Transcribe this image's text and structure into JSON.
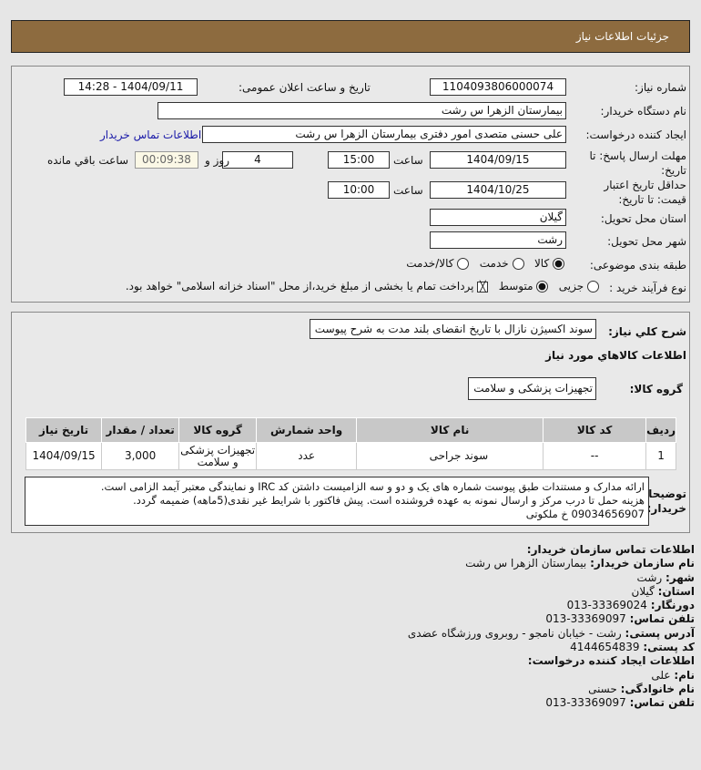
{
  "header": {
    "title": "جزئیات اطلاعات نیاز"
  },
  "form": {
    "need_number_label": "شماره نیاز:",
    "need_number": "1104093806000074",
    "announce_label": "تاریخ و ساعت اعلان عمومی:",
    "announce_value": "1404/09/11 - 14:28",
    "buyer_org_label": "نام دستگاه خریدار:",
    "buyer_org": "بیمارستان الزهرا  س  رشت",
    "creator_label": "ایجاد کننده درخواست:",
    "creator": "علی حسنی متصدی امور دفتری بیمارستان الزهرا  س  رشت",
    "contact_link": "اطلاعات تماس خریدار",
    "deadline_label": "مهلت ارسال پاسخ: تا تاریخ:",
    "deadline_date": "1404/09/15",
    "time_label": "ساعت",
    "deadline_time": "15:00",
    "days": "4",
    "days_label": "روز و",
    "remaining": "00:09:38",
    "remaining_label": "ساعت باقي مانده",
    "validity_label": "حداقل تاریخ اعتبار قیمت: تا تاریخ:",
    "validity_date": "1404/10/25",
    "validity_time": "10:00",
    "province_label": "استان محل تحویل:",
    "province": "گیلان",
    "city_label": "شهر محل تحویل:",
    "city": "رشت",
    "category_label": "طبقه بندی موضوعی:",
    "category_options": [
      "کالا",
      "خدمت",
      "کالا/خدمت"
    ],
    "category_selected": "کالا",
    "process_label": "نوع فرآیند خرید :",
    "process_options": [
      "جزیی",
      "متوسط"
    ],
    "process_selected": "متوسط",
    "payment_note": "پرداخت تمام یا بخشی از مبلغ خرید،از محل \"اسناد خزانه اسلامی\" خواهد بود."
  },
  "details": {
    "summary_label": "شرح كلي نياز:",
    "summary": "سوند اکسیژن نازال با تاریخ انقضای بلند مدت به شرح پیوست",
    "goods_title": "اطلاعات كالاهاي مورد نياز",
    "group_label": "گروه کالا:",
    "group": "تجهیزات پزشکی و سلامت",
    "table": {
      "headers": [
        "ردیف",
        "کد کالا",
        "نام کالا",
        "واحد شمارش",
        "گروه کالا",
        "تعداد / مقدار",
        "تاریخ نیاز"
      ],
      "rows": [
        [
          "1",
          "--",
          "سوند جراحی",
          "عدد",
          "تجهیزات پزشکی و سلامت",
          "3,000",
          "1404/09/15"
        ]
      ]
    },
    "notes_label": "توضیحات خریدار:",
    "notes": [
      "ارائه مدارک و مستندات طبق پیوست شماره های یک و دو و سه الزامیست داشتن کد IRC و نمایندگی معتبر آیمد الزامی است.",
      "هزینه حمل تا درب مرکز و ارسال نمونه به عهده فروشنده است. پیش فاکتور با شرایط غیر نقدی(5ماهه) ضمیمه گردد.",
      "09034656907 خ ملکوتی"
    ]
  },
  "contact": {
    "title": "اطلاعات تماس سازمان خریدار:",
    "items": [
      {
        "k": "نام سازمان خریدار:",
        "v": "بیمارستان الزهرا س رشت"
      },
      {
        "k": "شهر:",
        "v": "رشت"
      },
      {
        "k": "استان:",
        "v": "گیلان"
      },
      {
        "k": "دورنگار:",
        "v": "33369024-013"
      },
      {
        "k": "تلفن تماس:",
        "v": "33369097-013"
      },
      {
        "k": "آدرس پستی:",
        "v": "رشت - خیابان نامجو - روبروی ورزشگاه عضدی"
      },
      {
        "k": "کد پستی:",
        "v": "4144654839"
      }
    ],
    "creator_title": "اطلاعات ایجاد کننده درخواست:",
    "creator_items": [
      {
        "k": "نام:",
        "v": "علی"
      },
      {
        "k": "نام خانوادگی:",
        "v": "حسنی"
      },
      {
        "k": "تلفن تماس:",
        "v": "33369097-013"
      }
    ]
  }
}
